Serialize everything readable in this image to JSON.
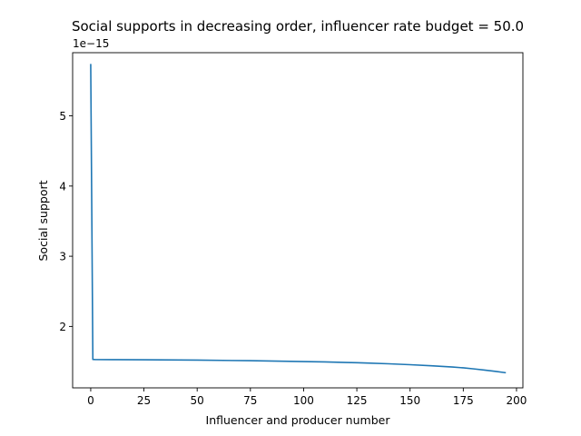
{
  "chart_data": {
    "type": "line",
    "title": "Social supports in decreasing order, influencer rate budget = 50.0",
    "xlabel": "Influencer and producer number",
    "ylabel": "Social support",
    "offset_label": "1e−15",
    "xlim": [
      -8.5,
      203
    ],
    "ylim": [
      1.125,
      5.9
    ],
    "xticks": [
      0,
      25,
      50,
      75,
      100,
      125,
      150,
      175,
      200
    ],
    "yticks": [
      2,
      3,
      4,
      5
    ],
    "grid": false,
    "legend": "none",
    "line_color": "#1f77b4",
    "series": [
      {
        "x": [
          0,
          1,
          2,
          10,
          25,
          50,
          75,
          100,
          110,
          120,
          125,
          130,
          140,
          150,
          160,
          170,
          175,
          180,
          185,
          190,
          195
        ],
        "y": [
          5.74,
          1.53,
          1.528,
          1.527,
          1.525,
          1.52,
          1.512,
          1.5,
          1.494,
          1.487,
          1.483,
          1.478,
          1.468,
          1.455,
          1.44,
          1.422,
          1.41,
          1.395,
          1.378,
          1.36,
          1.34
        ]
      }
    ]
  }
}
